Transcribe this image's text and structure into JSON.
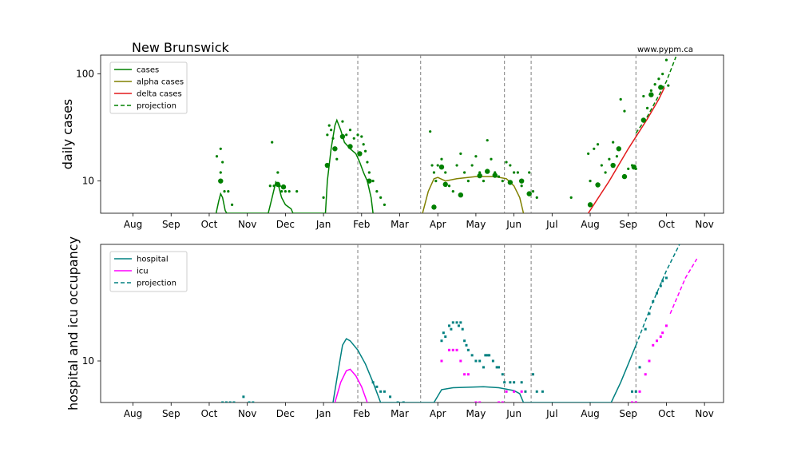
{
  "title": "New Brunswick",
  "credit": "www.pypm.ca",
  "colors": {
    "cases": "#008000",
    "alpha": "#808000",
    "delta": "#e31a1c",
    "hospital": "#008080",
    "icu": "#ff00ff",
    "vline": "#7f7f7f"
  },
  "chart_data": [
    {
      "type": "scatter",
      "ylabel": "daily cases",
      "yscale": "log",
      "ylim": [
        5,
        150
      ],
      "yticks": [
        {
          "value": 10,
          "label": "10"
        },
        {
          "value": 100,
          "label": "100"
        }
      ],
      "xrange_month_index": [
        -0.85,
        15.5
      ],
      "xticks": [
        {
          "m": 0,
          "label": "Aug"
        },
        {
          "m": 1,
          "label": "Sep"
        },
        {
          "m": 2,
          "label": "Oct"
        },
        {
          "m": 3,
          "label": "Nov"
        },
        {
          "m": 4,
          "label": "Dec"
        },
        {
          "m": 5,
          "label": "Jan"
        },
        {
          "m": 6,
          "label": "Feb"
        },
        {
          "m": 7,
          "label": "Mar"
        },
        {
          "m": 8,
          "label": "Apr"
        },
        {
          "m": 9,
          "label": "May"
        },
        {
          "m": 10,
          "label": "Jun"
        },
        {
          "m": 11,
          "label": "Jul"
        },
        {
          "m": 12,
          "label": "Aug"
        },
        {
          "m": 13,
          "label": "Sep"
        },
        {
          "m": 14,
          "label": "Oct"
        },
        {
          "m": 15,
          "label": "Nov"
        }
      ],
      "vlines": [
        5.9,
        7.55,
        9.75,
        10.45,
        13.2
      ],
      "legend": {
        "position": "upper-left",
        "entries": [
          {
            "label": "cases",
            "color": "#008000",
            "dash": false
          },
          {
            "label": "alpha cases",
            "color": "#808000",
            "dash": false
          },
          {
            "label": "delta cases",
            "color": "#e31a1c",
            "dash": false
          },
          {
            "label": "projection",
            "color": "#008000",
            "dash": true
          }
        ]
      },
      "series": [
        {
          "key": "cases-model",
          "color": "#008000",
          "dash": false,
          "points": [
            [
              2.18,
              5
            ],
            [
              2.25,
              6.5
            ],
            [
              2.3,
              7.6
            ],
            [
              2.35,
              7
            ],
            [
              2.42,
              5.3
            ],
            [
              2.46,
              5
            ],
            [
              3.55,
              5
            ],
            [
              3.65,
              7
            ],
            [
              3.75,
              9.8
            ],
            [
              3.82,
              9
            ],
            [
              3.9,
              7
            ],
            [
              4.0,
              6
            ],
            [
              4.15,
              5.5
            ],
            [
              4.2,
              5
            ],
            [
              5.05,
              5
            ],
            [
              5.1,
              10
            ],
            [
              5.2,
              20
            ],
            [
              5.3,
              33
            ],
            [
              5.35,
              37
            ],
            [
              5.45,
              30
            ],
            [
              5.55,
              23
            ],
            [
              5.7,
              20
            ],
            [
              5.85,
              18
            ],
            [
              5.95,
              15
            ],
            [
              6.05,
              12
            ],
            [
              6.15,
              10
            ],
            [
              6.25,
              7
            ],
            [
              6.3,
              5
            ]
          ]
        },
        {
          "key": "alpha-model",
          "color": "#808000",
          "dash": false,
          "points": [
            [
              7.6,
              5
            ],
            [
              7.75,
              8
            ],
            [
              7.9,
              10.5
            ],
            [
              8.0,
              10.8
            ],
            [
              8.2,
              10
            ],
            [
              8.5,
              10.5
            ],
            [
              9.0,
              11
            ],
            [
              9.5,
              11
            ],
            [
              9.8,
              10.5
            ],
            [
              10.0,
              9
            ],
            [
              10.15,
              7
            ],
            [
              10.25,
              5
            ]
          ]
        },
        {
          "key": "delta-model",
          "color": "#e31a1c",
          "dash": false,
          "points": [
            [
              11.95,
              5
            ],
            [
              12.5,
              10
            ],
            [
              13.0,
              20
            ],
            [
              13.5,
              38
            ],
            [
              13.8,
              58
            ],
            [
              13.95,
              75
            ]
          ]
        },
        {
          "key": "cases-projection",
          "color": "#008000",
          "dash": true,
          "points": [
            [
              13.2,
              28
            ],
            [
              13.5,
              40
            ],
            [
              14.0,
              85
            ],
            [
              14.25,
              145
            ]
          ]
        }
      ],
      "points_small": [
        [
          2.2,
          17
        ],
        [
          2.3,
          20
        ],
        [
          2.35,
          15
        ],
        [
          2.3,
          12
        ],
        [
          2.4,
          8
        ],
        [
          2.5,
          8
        ],
        [
          2.6,
          6
        ],
        [
          3.6,
          9
        ],
        [
          3.65,
          23
        ],
        [
          3.7,
          9
        ],
        [
          3.8,
          12
        ],
        [
          3.85,
          9
        ],
        [
          3.9,
          8
        ],
        [
          4.0,
          8
        ],
        [
          4.1,
          8
        ],
        [
          4.3,
          8
        ],
        [
          5.0,
          7
        ],
        [
          5.1,
          27
        ],
        [
          5.15,
          33
        ],
        [
          5.2,
          30
        ],
        [
          5.25,
          25
        ],
        [
          5.3,
          20
        ],
        [
          5.35,
          16
        ],
        [
          5.5,
          36
        ],
        [
          5.6,
          27
        ],
        [
          5.7,
          30
        ],
        [
          5.8,
          25
        ],
        [
          5.9,
          27
        ],
        [
          6.0,
          26
        ],
        [
          6.05,
          22
        ],
        [
          6.1,
          19
        ],
        [
          6.15,
          15
        ],
        [
          6.2,
          12
        ],
        [
          6.3,
          10
        ],
        [
          6.4,
          8
        ],
        [
          6.5,
          7
        ],
        [
          6.6,
          6
        ],
        [
          7.8,
          29
        ],
        [
          7.85,
          14
        ],
        [
          7.9,
          12
        ],
        [
          7.95,
          10
        ],
        [
          8.0,
          14
        ],
        [
          8.1,
          16
        ],
        [
          8.2,
          12
        ],
        [
          8.3,
          9
        ],
        [
          8.4,
          8
        ],
        [
          8.5,
          14
        ],
        [
          8.6,
          18
        ],
        [
          8.7,
          12
        ],
        [
          8.8,
          10
        ],
        [
          8.9,
          14
        ],
        [
          9.0,
          17
        ],
        [
          9.1,
          12
        ],
        [
          9.2,
          10
        ],
        [
          9.3,
          24
        ],
        [
          9.4,
          16
        ],
        [
          9.5,
          12
        ],
        [
          9.6,
          11
        ],
        [
          9.7,
          10
        ],
        [
          9.8,
          15
        ],
        [
          9.9,
          14
        ],
        [
          10.0,
          12
        ],
        [
          10.1,
          12
        ],
        [
          10.2,
          9
        ],
        [
          10.4,
          12
        ],
        [
          10.5,
          8
        ],
        [
          10.6,
          7
        ],
        [
          11.5,
          7
        ],
        [
          11.95,
          18
        ],
        [
          12.0,
          10
        ],
        [
          12.1,
          20
        ],
        [
          12.2,
          22
        ],
        [
          12.3,
          14
        ],
        [
          12.4,
          12
        ],
        [
          12.5,
          16
        ],
        [
          12.6,
          23
        ],
        [
          12.7,
          17
        ],
        [
          12.8,
          58
        ],
        [
          12.9,
          45
        ],
        [
          13.0,
          13
        ],
        [
          13.1,
          14
        ],
        [
          13.2,
          13
        ],
        [
          13.4,
          62
        ],
        [
          13.5,
          48
        ],
        [
          13.6,
          70
        ],
        [
          13.7,
          80
        ],
        [
          13.8,
          90
        ],
        [
          13.9,
          100
        ],
        [
          14.0,
          135
        ],
        [
          14.05,
          78
        ]
      ],
      "points_large": [
        [
          2.3,
          10
        ],
        [
          3.8,
          9.3
        ],
        [
          3.95,
          8.8
        ],
        [
          5.1,
          14
        ],
        [
          5.3,
          20
        ],
        [
          5.5,
          26
        ],
        [
          5.7,
          21
        ],
        [
          5.95,
          18
        ],
        [
          6.2,
          10
        ],
        [
          7.9,
          5.7
        ],
        [
          8.1,
          13.5
        ],
        [
          8.2,
          9.3
        ],
        [
          8.6,
          7.4
        ],
        [
          9.1,
          11.2
        ],
        [
          9.3,
          12.3
        ],
        [
          9.5,
          11.3
        ],
        [
          9.9,
          9.7
        ],
        [
          10.2,
          10
        ],
        [
          10.4,
          7.6
        ],
        [
          12.0,
          6
        ],
        [
          12.2,
          9.2
        ],
        [
          12.6,
          14
        ],
        [
          12.75,
          20
        ],
        [
          12.9,
          11
        ],
        [
          13.15,
          13.5
        ],
        [
          13.4,
          37
        ],
        [
          13.6,
          64
        ],
        [
          13.85,
          75
        ]
      ]
    },
    {
      "type": "scatter",
      "ylabel": "hospital and icu occupancy",
      "yscale": "log",
      "ylim": [
        5,
        70
      ],
      "yticks": [
        {
          "value": 10,
          "label": "10"
        }
      ],
      "xrange_month_index": [
        -0.85,
        15.5
      ],
      "vlines": [
        5.9,
        7.55,
        9.75,
        10.45,
        13.2
      ],
      "legend": {
        "position": "upper-left",
        "entries": [
          {
            "label": "hospital",
            "color": "#008080",
            "dash": false
          },
          {
            "label": "icu",
            "color": "#ff00ff",
            "dash": false
          },
          {
            "label": "projection",
            "color": "#008080",
            "dash": true
          }
        ]
      },
      "series": [
        {
          "key": "hospital-model",
          "color": "#008080",
          "dash": false,
          "points": [
            [
              5.25,
              5
            ],
            [
              5.4,
              9
            ],
            [
              5.5,
              13
            ],
            [
              5.6,
              14.5
            ],
            [
              5.7,
              14
            ],
            [
              5.9,
              12
            ],
            [
              6.1,
              9.5
            ],
            [
              6.3,
              7
            ],
            [
              6.5,
              5
            ],
            [
              7.9,
              5
            ],
            [
              8.1,
              6.2
            ],
            [
              8.4,
              6.4
            ],
            [
              9.2,
              6.5
            ],
            [
              9.6,
              6.4
            ],
            [
              10.0,
              6.1
            ],
            [
              10.15,
              5.8
            ],
            [
              10.25,
              5
            ],
            [
              12.55,
              5
            ],
            [
              12.8,
              7
            ],
            [
              13.0,
              9.5
            ],
            [
              13.2,
              13
            ]
          ]
        },
        {
          "key": "icu-model",
          "color": "#ff00ff",
          "dash": false,
          "points": [
            [
              5.3,
              5
            ],
            [
              5.45,
              7
            ],
            [
              5.6,
              8.5
            ],
            [
              5.7,
              8.7
            ],
            [
              5.85,
              7.8
            ],
            [
              6.0,
              6.5
            ],
            [
              6.15,
              5
            ]
          ]
        },
        {
          "key": "hospital-projection",
          "color": "#008080",
          "dash": true,
          "points": [
            [
              13.2,
              13
            ],
            [
              13.6,
              25
            ],
            [
              14.0,
              45
            ],
            [
              14.4,
              75
            ]
          ]
        },
        {
          "key": "icu-projection",
          "color": "#ff00ff",
          "dash": true,
          "points": [
            [
              14.1,
              22
            ],
            [
              14.5,
              40
            ],
            [
              14.8,
              55
            ]
          ]
        }
      ],
      "hospital_points": [
        [
          2.35,
          5
        ],
        [
          2.45,
          5
        ],
        [
          2.55,
          5
        ],
        [
          2.65,
          5
        ],
        [
          2.9,
          5.5
        ],
        [
          3.05,
          5
        ],
        [
          3.15,
          5
        ],
        [
          6.3,
          7
        ],
        [
          6.4,
          6.5
        ],
        [
          6.5,
          6
        ],
        [
          6.6,
          6
        ],
        [
          6.75,
          5.5
        ],
        [
          6.95,
          5
        ],
        [
          7.1,
          5
        ],
        [
          8.1,
          14
        ],
        [
          8.15,
          16
        ],
        [
          8.2,
          15
        ],
        [
          8.3,
          18
        ],
        [
          8.35,
          17
        ],
        [
          8.4,
          19
        ],
        [
          8.5,
          19
        ],
        [
          8.55,
          18
        ],
        [
          8.6,
          19
        ],
        [
          8.65,
          17
        ],
        [
          8.7,
          14
        ],
        [
          8.75,
          13
        ],
        [
          8.8,
          12
        ],
        [
          8.9,
          11
        ],
        [
          9.0,
          10
        ],
        [
          9.1,
          10
        ],
        [
          9.2,
          9
        ],
        [
          9.25,
          11
        ],
        [
          9.3,
          11
        ],
        [
          9.35,
          11
        ],
        [
          9.45,
          10
        ],
        [
          9.55,
          9
        ],
        [
          9.6,
          9
        ],
        [
          9.7,
          8
        ],
        [
          9.75,
          7
        ],
        [
          9.9,
          7
        ],
        [
          10.0,
          7
        ],
        [
          10.2,
          7
        ],
        [
          10.3,
          6
        ],
        [
          10.5,
          8
        ],
        [
          10.6,
          6
        ],
        [
          10.75,
          6
        ],
        [
          13.1,
          6
        ],
        [
          13.2,
          6
        ],
        [
          13.3,
          9
        ],
        [
          13.45,
          17
        ],
        [
          13.55,
          22
        ],
        [
          13.65,
          27
        ],
        [
          13.75,
          31
        ],
        [
          13.85,
          35
        ],
        [
          13.9,
          38
        ],
        [
          14.0,
          40
        ]
      ],
      "icu_points": [
        [
          8.1,
          10
        ],
        [
          8.3,
          12
        ],
        [
          8.4,
          12
        ],
        [
          8.5,
          12
        ],
        [
          8.6,
          10
        ],
        [
          8.7,
          8
        ],
        [
          8.8,
          8
        ],
        [
          9.0,
          5
        ],
        [
          9.1,
          5
        ],
        [
          9.6,
          5
        ],
        [
          9.7,
          5
        ],
        [
          9.8,
          6
        ],
        [
          10.0,
          6
        ],
        [
          10.2,
          6
        ],
        [
          13.1,
          5
        ],
        [
          13.2,
          5
        ],
        [
          13.3,
          6
        ],
        [
          13.45,
          8
        ],
        [
          13.55,
          10
        ],
        [
          13.65,
          13
        ],
        [
          13.75,
          14
        ],
        [
          13.85,
          15
        ],
        [
          13.9,
          16
        ],
        [
          14.0,
          18
        ]
      ]
    }
  ]
}
